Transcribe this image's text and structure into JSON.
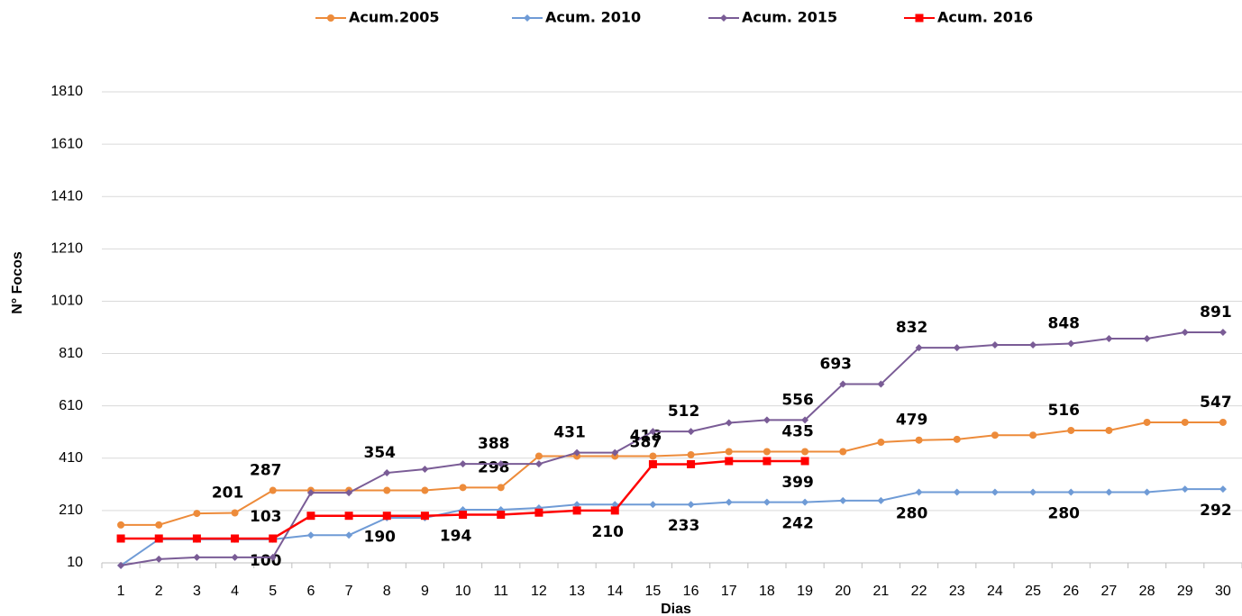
{
  "chart_data": {
    "type": "line",
    "x_label": "Dias",
    "y_label": "N° Focos",
    "categories": [
      "1",
      "2",
      "3",
      "4",
      "5",
      "6",
      "7",
      "8",
      "9",
      "10",
      "11",
      "12",
      "13",
      "14",
      "15",
      "16",
      "17",
      "18",
      "19",
      "20",
      "21",
      "22",
      "23",
      "24",
      "25",
      "26",
      "27",
      "28",
      "29",
      "30"
    ],
    "ylim": [
      10,
      1810
    ],
    "yticks": [
      10,
      210,
      410,
      610,
      810,
      1010,
      1210,
      1410,
      1610,
      1810
    ],
    "grid": true,
    "legend": "top",
    "series": [
      {
        "name": "Acum.2005",
        "color": "#ed8b3a",
        "marker": "circle",
        "values": [
          155,
          155,
          199,
          201,
          287,
          287,
          287,
          287,
          287,
          298,
          298,
          418,
          418,
          418,
          418,
          423,
          435,
          435,
          435,
          435,
          471,
          479,
          482,
          498,
          498,
          516,
          516,
          547,
          547,
          547
        ],
        "label_indices": [
          3,
          4,
          10,
          14,
          18,
          21,
          25,
          29
        ]
      },
      {
        "name": "Acum. 2010",
        "color": "#6f9bd6",
        "marker": "diamond",
        "values": [
          0,
          100,
          100,
          100,
          100,
          116,
          116,
          182,
          182,
          213,
          213,
          220,
          233,
          233,
          233,
          233,
          242,
          242,
          242,
          248,
          248,
          280,
          280,
          280,
          280,
          280,
          280,
          280,
          292,
          292
        ],
        "label_indices": [
          4,
          15,
          18,
          21,
          25,
          29
        ]
      },
      {
        "name": "Acum. 2015",
        "color": "#7a5c96",
        "marker": "diamond",
        "values": [
          0,
          24,
          31,
          31,
          31,
          278,
          278,
          354,
          368,
          388,
          388,
          388,
          431,
          431,
          512,
          512,
          545,
          556,
          556,
          693,
          693,
          832,
          832,
          843,
          843,
          848,
          867,
          867,
          891,
          891
        ],
        "label_indices": [
          7,
          10,
          12,
          15,
          18,
          19,
          21,
          25,
          29
        ]
      },
      {
        "name": "Acum. 2016",
        "color": "#ff0000",
        "marker": "square",
        "values": [
          103,
          103,
          103,
          103,
          103,
          190,
          190,
          190,
          190,
          194,
          194,
          202,
          210,
          210,
          387,
          387,
          399,
          399,
          399,
          null,
          null,
          null,
          null,
          null,
          null,
          null,
          null,
          null,
          null,
          null
        ],
        "label_indices": [
          4,
          7,
          9,
          13,
          14,
          18
        ]
      }
    ]
  }
}
